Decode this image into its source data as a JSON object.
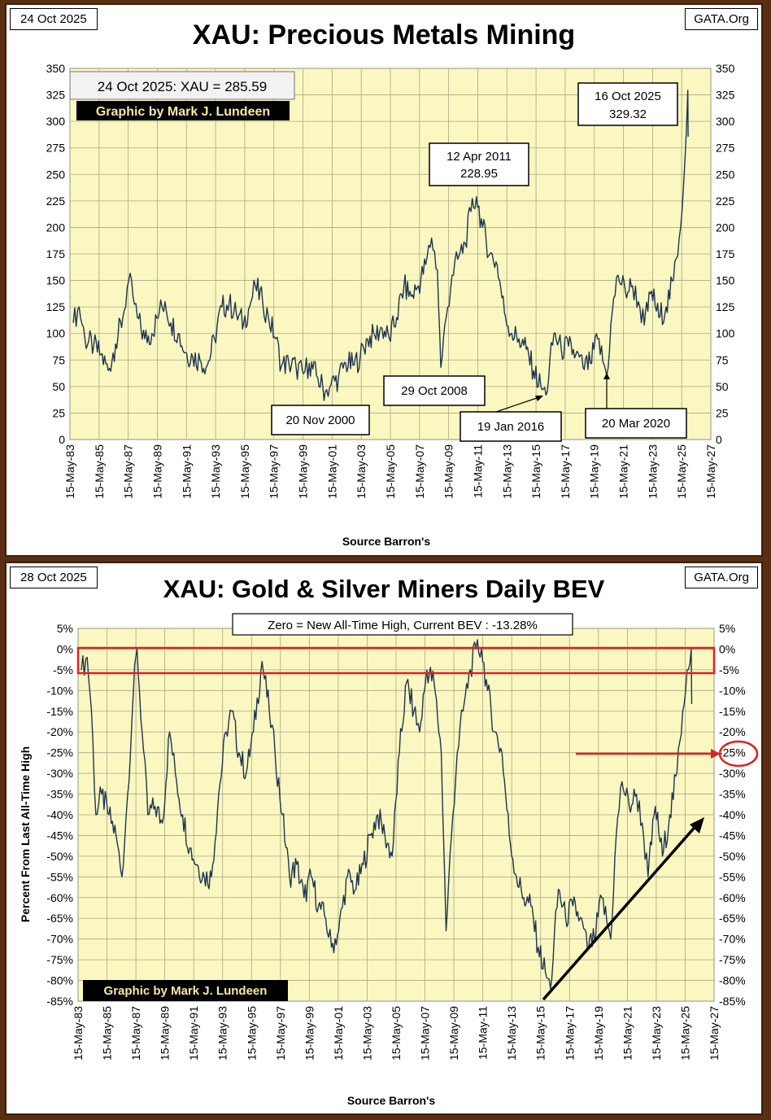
{
  "charts": {
    "top": {
      "date": "24 Oct 2025",
      "site": "GATA.Org",
      "title": "XAU: Precious Metals Mining",
      "info": "24 Oct 2025: XAU = 285.59",
      "credit": "Graphic by Mark J. Lundeen",
      "source": "Source Barron's",
      "annotations": {
        "peak2011": [
          "12 Apr 2011",
          "228.95"
        ],
        "peak2025": [
          "16 Oct 2025",
          "329.32"
        ],
        "low2000": "20 Nov 2000",
        "low2008": "29 Oct 2008",
        "low2016": "19 Jan 2016",
        "low2020": "20 Mar 2020"
      }
    },
    "bottom": {
      "date": "28 Oct 2025",
      "site": "GATA.Org",
      "title": "XAU: Gold & Silver Miners Daily BEV",
      "info": "Zero = New All-Time High, Current BEV :  -13.28%",
      "credit": "Graphic by Mark J. Lundeen",
      "ylabel": "Percent  From  Last  All-Time High",
      "source": "Source Barron's",
      "marker": "-25%"
    }
  },
  "chart_data": [
    {
      "type": "line",
      "title": "XAU: Precious Metals Mining",
      "xlabel": "Source Barron's",
      "ylabel": "",
      "ylim": [
        0,
        350
      ],
      "yticks": [
        "0",
        "25",
        "50",
        "75",
        "100",
        "125",
        "150",
        "175",
        "200",
        "225",
        "250",
        "275",
        "300",
        "325",
        "350"
      ],
      "xticks": [
        "15-May-83",
        "15-May-85",
        "15-May-87",
        "15-May-89",
        "15-May-91",
        "15-May-93",
        "15-May-95",
        "15-May-97",
        "15-May-99",
        "15-May-01",
        "15-May-03",
        "15-May-05",
        "15-May-07",
        "15-May-09",
        "15-May-11",
        "15-May-13",
        "15-May-15",
        "15-May-17",
        "15-May-19",
        "15-May-21",
        "15-May-23",
        "15-May-25",
        "15-May-27"
      ],
      "xlim": [
        1983.37,
        2027.37
      ],
      "grid": true,
      "series": [
        {
          "values": [
            [
              1983.6,
              110
            ],
            [
              1984.0,
              125
            ],
            [
              1984.4,
              95
            ],
            [
              1985.0,
              88
            ],
            [
              1985.5,
              80
            ],
            [
              1986.0,
              65
            ],
            [
              1986.5,
              90
            ],
            [
              1987.0,
              115
            ],
            [
              1987.4,
              150
            ],
            [
              1987.7,
              135
            ],
            [
              1988.0,
              115
            ],
            [
              1988.5,
              95
            ],
            [
              1989.0,
              100
            ],
            [
              1989.5,
              120
            ],
            [
              1989.9,
              130
            ],
            [
              1990.3,
              110
            ],
            [
              1990.8,
              100
            ],
            [
              1991.3,
              82
            ],
            [
              1991.8,
              78
            ],
            [
              1992.3,
              75
            ],
            [
              1992.8,
              70
            ],
            [
              1993.3,
              95
            ],
            [
              1993.8,
              125
            ],
            [
              1994.3,
              128
            ],
            [
              1994.8,
              118
            ],
            [
              1995.3,
              110
            ],
            [
              1995.8,
              130
            ],
            [
              1996.1,
              145
            ],
            [
              1996.6,
              130
            ],
            [
              1997.0,
              115
            ],
            [
              1997.5,
              95
            ],
            [
              1997.9,
              70
            ],
            [
              1998.4,
              72
            ],
            [
              1998.9,
              68
            ],
            [
              1999.4,
              62
            ],
            [
              1999.8,
              72
            ],
            [
              2000.3,
              60
            ],
            [
              2000.9,
              45
            ],
            [
              2001.3,
              52
            ],
            [
              2001.8,
              58
            ],
            [
              2002.3,
              72
            ],
            [
              2002.8,
              70
            ],
            [
              2003.3,
              78
            ],
            [
              2003.8,
              95
            ],
            [
              2004.3,
              98
            ],
            [
              2004.8,
              105
            ],
            [
              2005.3,
              95
            ],
            [
              2005.8,
              115
            ],
            [
              2006.3,
              145
            ],
            [
              2006.8,
              135
            ],
            [
              2007.3,
              145
            ],
            [
              2007.8,
              165
            ],
            [
              2008.2,
              190
            ],
            [
              2008.6,
              160
            ],
            [
              2008.83,
              68
            ],
            [
              2009.2,
              115
            ],
            [
              2009.6,
              155
            ],
            [
              2010.0,
              170
            ],
            [
              2010.5,
              185
            ],
            [
              2010.9,
              215
            ],
            [
              2011.28,
              228.95
            ],
            [
              2011.7,
              200
            ],
            [
              2012.2,
              175
            ],
            [
              2012.7,
              165
            ],
            [
              2013.2,
              120
            ],
            [
              2013.7,
              100
            ],
            [
              2014.2,
              95
            ],
            [
              2014.7,
              85
            ],
            [
              2015.2,
              65
            ],
            [
              2015.7,
              50
            ],
            [
              2016.05,
              42
            ],
            [
              2016.6,
              100
            ],
            [
              2017.1,
              85
            ],
            [
              2017.6,
              88
            ],
            [
              2018.1,
              80
            ],
            [
              2018.6,
              68
            ],
            [
              2019.1,
              72
            ],
            [
              2019.6,
              95
            ],
            [
              2020.22,
              60
            ],
            [
              2020.6,
              120
            ],
            [
              2021.0,
              155
            ],
            [
              2021.5,
              140
            ],
            [
              2022.0,
              145
            ],
            [
              2022.4,
              130
            ],
            [
              2022.8,
              108
            ],
            [
              2023.3,
              140
            ],
            [
              2023.8,
              115
            ],
            [
              2024.3,
              125
            ],
            [
              2024.8,
              150
            ],
            [
              2025.2,
              190
            ],
            [
              2025.5,
              240
            ],
            [
              2025.79,
              329.32
            ],
            [
              2025.81,
              285.59
            ]
          ]
        }
      ]
    },
    {
      "type": "line",
      "title": "XAU: Gold & Silver Miners Daily BEV",
      "xlabel": "Source Barron's",
      "ylabel": "Percent  From  Last  All-Time High",
      "ylim": [
        -85,
        5
      ],
      "yticks": [
        "5%",
        "0%",
        "-5%",
        "-10%",
        "-15%",
        "-20%",
        "-25%",
        "-30%",
        "-35%",
        "-40%",
        "-45%",
        "-50%",
        "-55%",
        "-60%",
        "-65%",
        "-70%",
        "-75%",
        "-80%",
        "-85%"
      ],
      "xticks": [
        "15-May-83",
        "15-May-85",
        "15-May-87",
        "15-May-89",
        "15-May-91",
        "15-May-93",
        "15-May-95",
        "15-May-97",
        "15-May-99",
        "15-May-01",
        "15-May-03",
        "15-May-05",
        "15-May-07",
        "15-May-09",
        "15-May-11",
        "15-May-13",
        "15-May-15",
        "15-May-17",
        "15-May-19",
        "15-May-21",
        "15-May-23",
        "15-May-25",
        "15-May-27"
      ],
      "xlim": [
        1983.37,
        2027.37
      ],
      "grid": true,
      "series": [
        {
          "values": [
            [
              1983.6,
              -5
            ],
            [
              1984.0,
              -2
            ],
            [
              1984.3,
              -15
            ],
            [
              1984.6,
              -40
            ],
            [
              1985.0,
              -35
            ],
            [
              1985.5,
              -40
            ],
            [
              1986.0,
              -45
            ],
            [
              1986.4,
              -55
            ],
            [
              1986.8,
              -35
            ],
            [
              1987.2,
              -10
            ],
            [
              1987.45,
              0
            ],
            [
              1987.8,
              -20
            ],
            [
              1988.2,
              -40
            ],
            [
              1988.7,
              -38
            ],
            [
              1989.2,
              -42
            ],
            [
              1989.7,
              -20
            ],
            [
              1990.1,
              -30
            ],
            [
              1990.6,
              -40
            ],
            [
              1991.1,
              -48
            ],
            [
              1991.6,
              -52
            ],
            [
              1992.1,
              -55
            ],
            [
              1992.6,
              -55
            ],
            [
              1993.1,
              -35
            ],
            [
              1993.6,
              -20
            ],
            [
              1994.0,
              -15
            ],
            [
              1994.5,
              -25
            ],
            [
              1995.0,
              -30
            ],
            [
              1995.5,
              -20
            ],
            [
              1996.1,
              -3
            ],
            [
              1996.6,
              -15
            ],
            [
              1997.0,
              -25
            ],
            [
              1997.5,
              -40
            ],
            [
              1998.0,
              -55
            ],
            [
              1998.5,
              -52
            ],
            [
              1999.0,
              -60
            ],
            [
              1999.5,
              -55
            ],
            [
              2000.0,
              -62
            ],
            [
              2000.5,
              -65
            ],
            [
              2000.9,
              -72
            ],
            [
              2001.4,
              -68
            ],
            [
              2002.0,
              -55
            ],
            [
              2002.6,
              -58
            ],
            [
              2003.1,
              -52
            ],
            [
              2003.6,
              -45
            ],
            [
              2004.1,
              -40
            ],
            [
              2004.6,
              -45
            ],
            [
              2005.1,
              -50
            ],
            [
              2005.6,
              -25
            ],
            [
              2006.1,
              -8
            ],
            [
              2006.6,
              -15
            ],
            [
              2007.0,
              -20
            ],
            [
              2007.5,
              -5
            ],
            [
              2008.0,
              -8
            ],
            [
              2008.5,
              -25
            ],
            [
              2008.83,
              -68
            ],
            [
              2009.2,
              -45
            ],
            [
              2009.6,
              -25
            ],
            [
              2010.0,
              -15
            ],
            [
              2010.5,
              -5
            ],
            [
              2010.9,
              0
            ],
            [
              2011.28,
              0
            ],
            [
              2011.7,
              -10
            ],
            [
              2012.2,
              -20
            ],
            [
              2012.7,
              -25
            ],
            [
              2013.2,
              -45
            ],
            [
              2013.7,
              -55
            ],
            [
              2014.2,
              -60
            ],
            [
              2014.7,
              -62
            ],
            [
              2015.2,
              -72
            ],
            [
              2015.7,
              -78
            ],
            [
              2016.05,
              -82
            ],
            [
              2016.6,
              -58
            ],
            [
              2017.1,
              -65
            ],
            [
              2017.6,
              -62
            ],
            [
              2018.1,
              -65
            ],
            [
              2018.6,
              -72
            ],
            [
              2019.1,
              -70
            ],
            [
              2019.6,
              -60
            ],
            [
              2020.22,
              -70
            ],
            [
              2020.6,
              -45
            ],
            [
              2021.0,
              -32
            ],
            [
              2021.5,
              -38
            ],
            [
              2022.0,
              -35
            ],
            [
              2022.4,
              -42
            ],
            [
              2022.8,
              -55
            ],
            [
              2023.3,
              -38
            ],
            [
              2023.8,
              -50
            ],
            [
              2024.3,
              -40
            ],
            [
              2024.8,
              -30
            ],
            [
              2025.2,
              -15
            ],
            [
              2025.5,
              -5
            ],
            [
              2025.79,
              0
            ],
            [
              2025.82,
              -13.28
            ]
          ]
        }
      ]
    }
  ]
}
